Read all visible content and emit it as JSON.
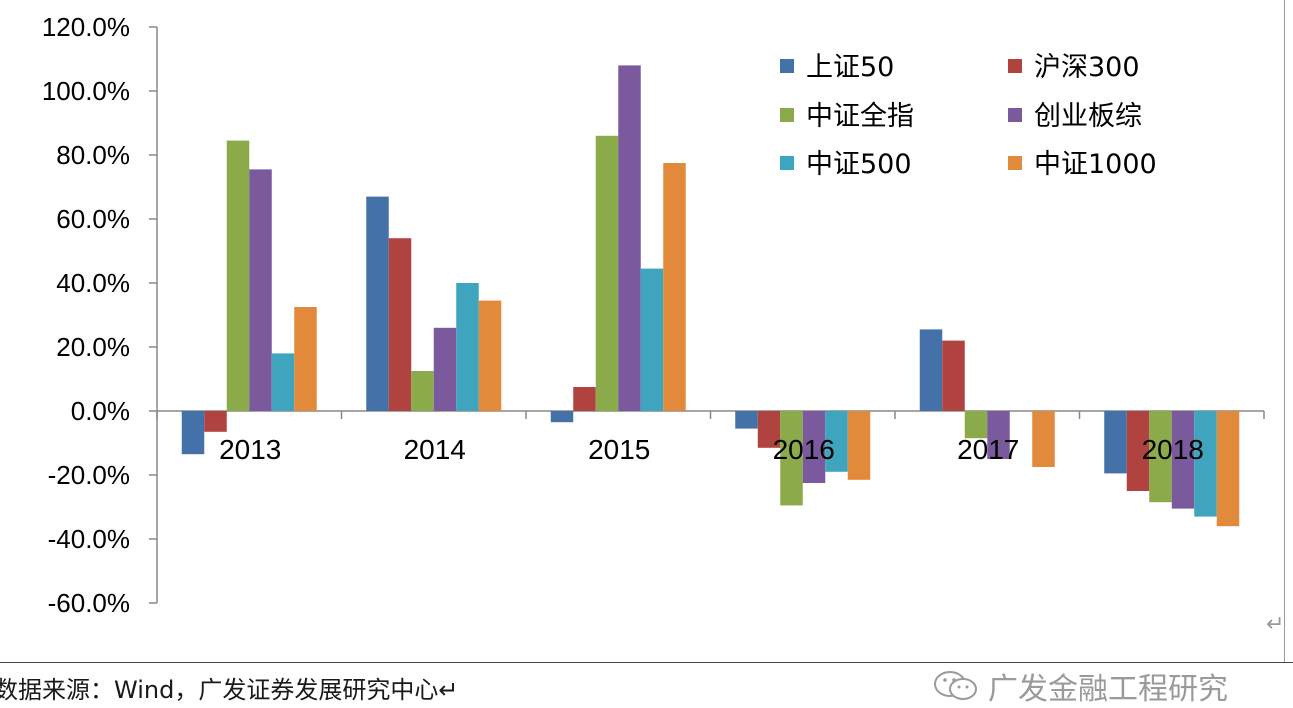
{
  "chart_data": {
    "type": "bar",
    "categories": [
      "2013",
      "2014",
      "2015",
      "2016",
      "2017",
      "2018"
    ],
    "series": [
      {
        "name": "上证50",
        "color": "#4472A8",
        "values": [
          -13.5,
          67.0,
          -3.5,
          -5.5,
          25.5,
          -19.5
        ]
      },
      {
        "name": "沪深300",
        "color": "#B04340",
        "values": [
          -6.5,
          54.0,
          7.5,
          -11.5,
          22.0,
          -25.0
        ]
      },
      {
        "name": "中证全指",
        "color": "#8BAA4A",
        "values": [
          84.5,
          12.5,
          86.0,
          -29.5,
          -8.5,
          -28.5
        ]
      },
      {
        "name": "创业板综",
        "color": "#7A5A9C",
        "values": [
          75.5,
          26.0,
          108.0,
          -22.5,
          -15.0,
          -30.5
        ]
      },
      {
        "name": "中证500",
        "color": "#3FA4BD",
        "values": [
          18.0,
          40.0,
          44.5,
          -19.0,
          0.0,
          -33.0
        ]
      },
      {
        "name": "中证1000",
        "color": "#E28A3C",
        "values": [
          32.5,
          34.5,
          77.5,
          -21.5,
          -17.5,
          -36.0
        ]
      }
    ],
    "yticks": [
      "120.0%",
      "100.0%",
      "80.0%",
      "60.0%",
      "40.0%",
      "20.0%",
      "0.0%",
      "-20.0%",
      "-40.0%",
      "-60.0%"
    ],
    "ylim": [
      -60,
      120
    ],
    "legend_position": "top-right",
    "grid": false
  },
  "footer": {
    "source": "数据来源：Wind，广发证券发展研究中心↵",
    "brand": "广发金融工程研究"
  },
  "marks": {
    "return_glyph": "↵"
  }
}
